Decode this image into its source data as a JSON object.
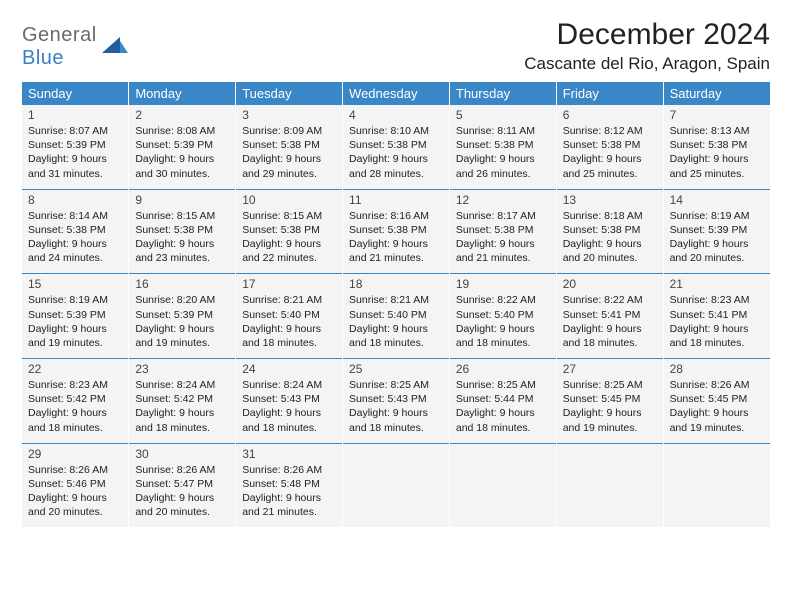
{
  "logo": {
    "general": "General",
    "blue": "Blue"
  },
  "title": "December 2024",
  "location": "Cascante del Rio, Aragon, Spain",
  "day_names": [
    "Sunday",
    "Monday",
    "Tuesday",
    "Wednesday",
    "Thursday",
    "Friday",
    "Saturday"
  ],
  "colors": {
    "header_bg": "#3a87c7",
    "header_text": "#ffffff",
    "cell_bg": "#f4f4f4",
    "separator": "#3a87c7",
    "logo_gray": "#6b6b6b",
    "logo_blue": "#3a7fc4"
  },
  "weeks": [
    [
      {
        "n": "1",
        "sr": "Sunrise: 8:07 AM",
        "ss": "Sunset: 5:39 PM",
        "d1": "Daylight: 9 hours",
        "d2": "and 31 minutes."
      },
      {
        "n": "2",
        "sr": "Sunrise: 8:08 AM",
        "ss": "Sunset: 5:39 PM",
        "d1": "Daylight: 9 hours",
        "d2": "and 30 minutes."
      },
      {
        "n": "3",
        "sr": "Sunrise: 8:09 AM",
        "ss": "Sunset: 5:38 PM",
        "d1": "Daylight: 9 hours",
        "d2": "and 29 minutes."
      },
      {
        "n": "4",
        "sr": "Sunrise: 8:10 AM",
        "ss": "Sunset: 5:38 PM",
        "d1": "Daylight: 9 hours",
        "d2": "and 28 minutes."
      },
      {
        "n": "5",
        "sr": "Sunrise: 8:11 AM",
        "ss": "Sunset: 5:38 PM",
        "d1": "Daylight: 9 hours",
        "d2": "and 26 minutes."
      },
      {
        "n": "6",
        "sr": "Sunrise: 8:12 AM",
        "ss": "Sunset: 5:38 PM",
        "d1": "Daylight: 9 hours",
        "d2": "and 25 minutes."
      },
      {
        "n": "7",
        "sr": "Sunrise: 8:13 AM",
        "ss": "Sunset: 5:38 PM",
        "d1": "Daylight: 9 hours",
        "d2": "and 25 minutes."
      }
    ],
    [
      {
        "n": "8",
        "sr": "Sunrise: 8:14 AM",
        "ss": "Sunset: 5:38 PM",
        "d1": "Daylight: 9 hours",
        "d2": "and 24 minutes."
      },
      {
        "n": "9",
        "sr": "Sunrise: 8:15 AM",
        "ss": "Sunset: 5:38 PM",
        "d1": "Daylight: 9 hours",
        "d2": "and 23 minutes."
      },
      {
        "n": "10",
        "sr": "Sunrise: 8:15 AM",
        "ss": "Sunset: 5:38 PM",
        "d1": "Daylight: 9 hours",
        "d2": "and 22 minutes."
      },
      {
        "n": "11",
        "sr": "Sunrise: 8:16 AM",
        "ss": "Sunset: 5:38 PM",
        "d1": "Daylight: 9 hours",
        "d2": "and 21 minutes."
      },
      {
        "n": "12",
        "sr": "Sunrise: 8:17 AM",
        "ss": "Sunset: 5:38 PM",
        "d1": "Daylight: 9 hours",
        "d2": "and 21 minutes."
      },
      {
        "n": "13",
        "sr": "Sunrise: 8:18 AM",
        "ss": "Sunset: 5:38 PM",
        "d1": "Daylight: 9 hours",
        "d2": "and 20 minutes."
      },
      {
        "n": "14",
        "sr": "Sunrise: 8:19 AM",
        "ss": "Sunset: 5:39 PM",
        "d1": "Daylight: 9 hours",
        "d2": "and 20 minutes."
      }
    ],
    [
      {
        "n": "15",
        "sr": "Sunrise: 8:19 AM",
        "ss": "Sunset: 5:39 PM",
        "d1": "Daylight: 9 hours",
        "d2": "and 19 minutes."
      },
      {
        "n": "16",
        "sr": "Sunrise: 8:20 AM",
        "ss": "Sunset: 5:39 PM",
        "d1": "Daylight: 9 hours",
        "d2": "and 19 minutes."
      },
      {
        "n": "17",
        "sr": "Sunrise: 8:21 AM",
        "ss": "Sunset: 5:40 PM",
        "d1": "Daylight: 9 hours",
        "d2": "and 18 minutes."
      },
      {
        "n": "18",
        "sr": "Sunrise: 8:21 AM",
        "ss": "Sunset: 5:40 PM",
        "d1": "Daylight: 9 hours",
        "d2": "and 18 minutes."
      },
      {
        "n": "19",
        "sr": "Sunrise: 8:22 AM",
        "ss": "Sunset: 5:40 PM",
        "d1": "Daylight: 9 hours",
        "d2": "and 18 minutes."
      },
      {
        "n": "20",
        "sr": "Sunrise: 8:22 AM",
        "ss": "Sunset: 5:41 PM",
        "d1": "Daylight: 9 hours",
        "d2": "and 18 minutes."
      },
      {
        "n": "21",
        "sr": "Sunrise: 8:23 AM",
        "ss": "Sunset: 5:41 PM",
        "d1": "Daylight: 9 hours",
        "d2": "and 18 minutes."
      }
    ],
    [
      {
        "n": "22",
        "sr": "Sunrise: 8:23 AM",
        "ss": "Sunset: 5:42 PM",
        "d1": "Daylight: 9 hours",
        "d2": "and 18 minutes."
      },
      {
        "n": "23",
        "sr": "Sunrise: 8:24 AM",
        "ss": "Sunset: 5:42 PM",
        "d1": "Daylight: 9 hours",
        "d2": "and 18 minutes."
      },
      {
        "n": "24",
        "sr": "Sunrise: 8:24 AM",
        "ss": "Sunset: 5:43 PM",
        "d1": "Daylight: 9 hours",
        "d2": "and 18 minutes."
      },
      {
        "n": "25",
        "sr": "Sunrise: 8:25 AM",
        "ss": "Sunset: 5:43 PM",
        "d1": "Daylight: 9 hours",
        "d2": "and 18 minutes."
      },
      {
        "n": "26",
        "sr": "Sunrise: 8:25 AM",
        "ss": "Sunset: 5:44 PM",
        "d1": "Daylight: 9 hours",
        "d2": "and 18 minutes."
      },
      {
        "n": "27",
        "sr": "Sunrise: 8:25 AM",
        "ss": "Sunset: 5:45 PM",
        "d1": "Daylight: 9 hours",
        "d2": "and 19 minutes."
      },
      {
        "n": "28",
        "sr": "Sunrise: 8:26 AM",
        "ss": "Sunset: 5:45 PM",
        "d1": "Daylight: 9 hours",
        "d2": "and 19 minutes."
      }
    ],
    [
      {
        "n": "29",
        "sr": "Sunrise: 8:26 AM",
        "ss": "Sunset: 5:46 PM",
        "d1": "Daylight: 9 hours",
        "d2": "and 20 minutes."
      },
      {
        "n": "30",
        "sr": "Sunrise: 8:26 AM",
        "ss": "Sunset: 5:47 PM",
        "d1": "Daylight: 9 hours",
        "d2": "and 20 minutes."
      },
      {
        "n": "31",
        "sr": "Sunrise: 8:26 AM",
        "ss": "Sunset: 5:48 PM",
        "d1": "Daylight: 9 hours",
        "d2": "and 21 minutes."
      },
      null,
      null,
      null,
      null
    ]
  ]
}
